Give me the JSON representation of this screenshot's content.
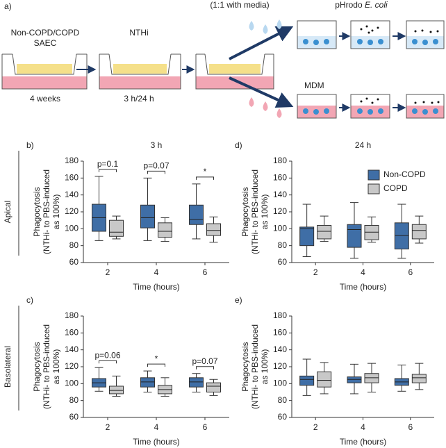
{
  "schematic": {
    "panel": "a)",
    "well1_line1": "Non-COPD/COPD",
    "well1_line2": "SAEC",
    "well1_time": "4 weeks",
    "well2_label": "NTHi",
    "well2_time": "3 h/24 h",
    "media_note": "(1:1 with media)",
    "probe_name": "pHrodo",
    "probe_organism": "E. coli",
    "cell_label": "MDM"
  },
  "chart_data": [
    {
      "type": "box",
      "panel": "b)",
      "title": "3 h",
      "row_label": "Apical",
      "xlabel": "Time (hours)",
      "ylabel": [
        "Phagocytosis",
        "(NTHi- to PBS-induced",
        "as 100%)"
      ],
      "categories": [
        "2",
        "4",
        "6"
      ],
      "ylim": [
        60,
        180
      ],
      "yticks": [
        60,
        80,
        100,
        120,
        140,
        160,
        180
      ],
      "series": [
        {
          "name": "Non-COPD",
          "color": "#3f6ea6",
          "values": [
            {
              "min": 86,
              "q1": 97,
              "median": 113,
              "q3": 129,
              "max": 162
            },
            {
              "min": 86,
              "q1": 101,
              "median": 113,
              "q3": 128,
              "max": 160
            },
            {
              "min": 88,
              "q1": 105,
              "median": 111,
              "q3": 128,
              "max": 153
            }
          ]
        },
        {
          "name": "COPD",
          "color": "#c8c8c8",
          "values": [
            {
              "min": 88,
              "q1": 91,
              "median": 96,
              "q3": 110,
              "max": 115
            },
            {
              "min": 85,
              "q1": 90,
              "median": 97,
              "q3": 107,
              "max": 113
            },
            {
              "min": 84,
              "q1": 92,
              "median": 98,
              "q3": 106,
              "max": 114
            }
          ]
        }
      ],
      "annotations": [
        {
          "text": "p=0.1",
          "category": "2"
        },
        {
          "text": "p=0.07",
          "category": "4"
        },
        {
          "text": "*",
          "category": "6"
        }
      ]
    },
    {
      "type": "box",
      "panel": "d)",
      "title": "24 h",
      "xlabel": "Time (hours)",
      "ylabel": [
        "Phagocytosis",
        "(NTHi- to PBS-induced",
        "as 100%)"
      ],
      "categories": [
        "2",
        "4",
        "6"
      ],
      "ylim": [
        60,
        180
      ],
      "yticks": [
        60,
        80,
        100,
        120,
        140,
        160,
        180
      ],
      "legend": "top-right",
      "series": [
        {
          "name": "Non-COPD",
          "color": "#3f6ea6",
          "values": [
            {
              "min": 67,
              "q1": 80,
              "median": 100,
              "q3": 102,
              "max": 129
            },
            {
              "min": 65,
              "q1": 78,
              "median": 99,
              "q3": 105,
              "max": 131
            },
            {
              "min": 65,
              "q1": 76,
              "median": 92,
              "q3": 107,
              "max": 129
            }
          ]
        },
        {
          "name": "COPD",
          "color": "#c8c8c8",
          "values": [
            {
              "min": 85,
              "q1": 88,
              "median": 97,
              "q3": 104,
              "max": 115
            },
            {
              "min": 84,
              "q1": 87,
              "median": 96,
              "q3": 104,
              "max": 114
            },
            {
              "min": 83,
              "q1": 88,
              "median": 98,
              "q3": 105,
              "max": 115
            }
          ]
        }
      ]
    },
    {
      "type": "box",
      "panel": "c)",
      "row_label": "Basolateral",
      "xlabel": "Time (hours)",
      "ylabel": [
        "Phagocytosis",
        "(NTHi- to PBS-induced",
        "as 100%)"
      ],
      "categories": [
        "2",
        "4",
        "6"
      ],
      "ylim": [
        60,
        180
      ],
      "yticks": [
        60,
        80,
        100,
        120,
        140,
        160,
        180
      ],
      "series": [
        {
          "name": "Non-COPD",
          "color": "#3f6ea6",
          "values": [
            {
              "min": 91,
              "q1": 96,
              "median": 101,
              "q3": 106,
              "max": 119
            },
            {
              "min": 90,
              "q1": 96,
              "median": 102,
              "q3": 107,
              "max": 115
            },
            {
              "min": 90,
              "q1": 96,
              "median": 102,
              "q3": 107,
              "max": 112
            }
          ]
        },
        {
          "name": "COPD",
          "color": "#c8c8c8",
          "values": [
            {
              "min": 85,
              "q1": 88,
              "median": 92,
              "q3": 97,
              "max": 109
            },
            {
              "min": 85,
              "q1": 88,
              "median": 93,
              "q3": 98,
              "max": 107
            },
            {
              "min": 86,
              "q1": 90,
              "median": 97,
              "q3": 101,
              "max": 105
            }
          ]
        }
      ],
      "annotations": [
        {
          "text": "p=0.06",
          "category": "2"
        },
        {
          "text": "*",
          "category": "4"
        },
        {
          "text": "p=0.07",
          "category": "6"
        }
      ]
    },
    {
      "type": "box",
      "panel": "e)",
      "xlabel": "Time (hours)",
      "ylabel": [
        "Phagocytosis",
        "(NTHi- to PBS-induced",
        "as 100%)"
      ],
      "categories": [
        "2",
        "4",
        "6"
      ],
      "ylim": [
        60,
        180
      ],
      "yticks": [
        60,
        80,
        100,
        120,
        140,
        160,
        180
      ],
      "series": [
        {
          "name": "Non-COPD",
          "color": "#3f6ea6",
          "values": [
            {
              "min": 86,
              "q1": 98,
              "median": 105,
              "q3": 109,
              "max": 129
            },
            {
              "min": 88,
              "q1": 101,
              "median": 105,
              "q3": 108,
              "max": 123
            },
            {
              "min": 91,
              "q1": 98,
              "median": 102,
              "q3": 106,
              "max": 122
            }
          ]
        },
        {
          "name": "COPD",
          "color": "#c8c8c8",
          "values": [
            {
              "min": 88,
              "q1": 96,
              "median": 104,
              "q3": 114,
              "max": 125
            },
            {
              "min": 90,
              "q1": 101,
              "median": 107,
              "q3": 112,
              "max": 124
            },
            {
              "min": 93,
              "q1": 101,
              "median": 107,
              "q3": 111,
              "max": 124
            }
          ]
        }
      ]
    }
  ]
}
